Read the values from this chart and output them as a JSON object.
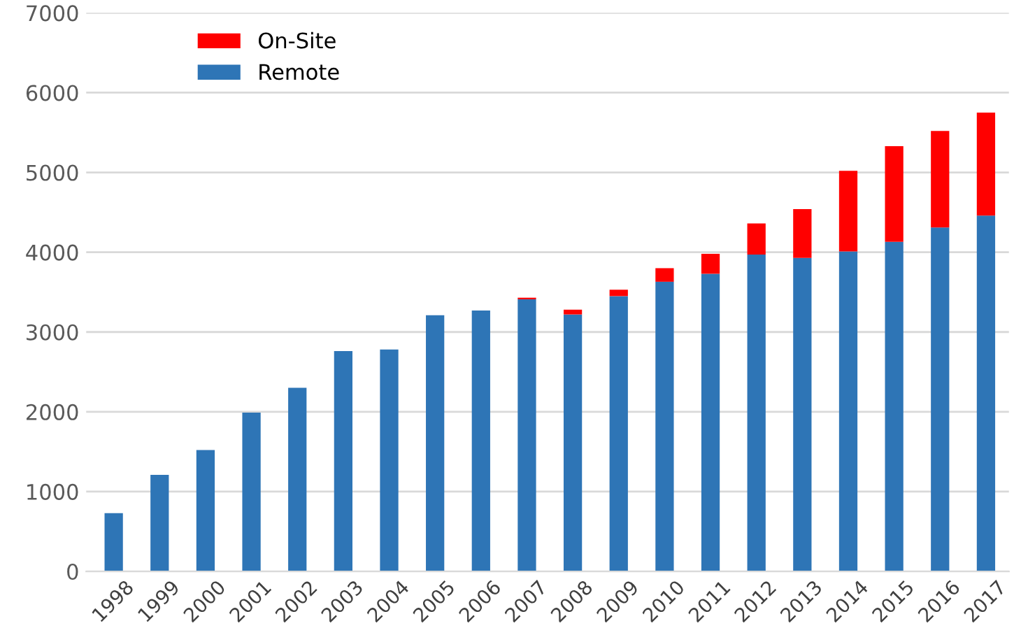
{
  "chart_data": {
    "type": "bar",
    "stacked": true,
    "categories": [
      "1998",
      "1999",
      "2000",
      "2001",
      "2002",
      "2003",
      "2004",
      "2005",
      "2006",
      "2007",
      "2008",
      "2009",
      "2010",
      "2011",
      "2012",
      "2013",
      "2014",
      "2015",
      "2016",
      "2017"
    ],
    "series": [
      {
        "name": "Remote",
        "color": "#2e75b6",
        "values": [
          730,
          1210,
          1520,
          1990,
          2300,
          2760,
          2780,
          3210,
          3270,
          3410,
          3220,
          3450,
          3630,
          3730,
          3970,
          3930,
          4010,
          4130,
          4310,
          4460
        ]
      },
      {
        "name": "On-Site",
        "color": "#ff0000",
        "values": [
          0,
          0,
          0,
          0,
          0,
          0,
          0,
          0,
          0,
          20,
          60,
          80,
          170,
          250,
          390,
          610,
          1010,
          1200,
          1210,
          1290
        ]
      }
    ],
    "ylim": [
      0,
      7000
    ],
    "yticks": [
      0,
      1000,
      2000,
      3000,
      4000,
      5000,
      6000,
      7000
    ],
    "grid": "y",
    "legend": "top left"
  }
}
